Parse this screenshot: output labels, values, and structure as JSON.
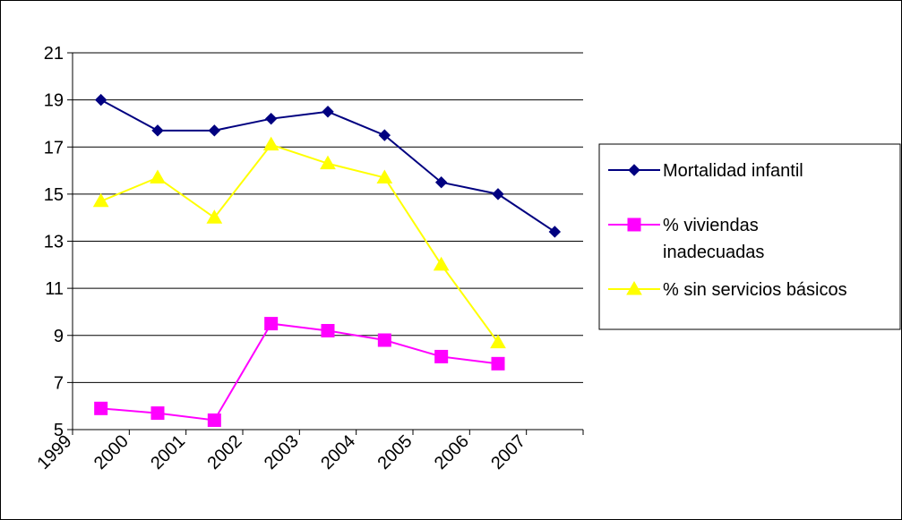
{
  "chart_data": {
    "type": "line",
    "title": "",
    "xlabel": "",
    "ylabel": "",
    "categories": [
      "1999",
      "2000",
      "2001",
      "2002",
      "2003",
      "2004",
      "2005",
      "2006",
      "2007"
    ],
    "ylim": [
      5,
      21
    ],
    "yticks": [
      "5",
      "7",
      "9",
      "11",
      "13",
      "15",
      "17",
      "19",
      "21"
    ],
    "grid": "horizontal",
    "legend_position": "right",
    "series": [
      {
        "name": "Mortalidad infantil",
        "marker": "diamond",
        "color": "#000080",
        "values": [
          19.0,
          17.7,
          17.7,
          18.2,
          18.5,
          17.5,
          15.5,
          15.0,
          13.4
        ]
      },
      {
        "name": "% viviendas inadecuadas",
        "name_lines": [
          "% viviendas",
          "inadecuadas"
        ],
        "marker": "square",
        "color": "#FF00FF",
        "values": [
          5.9,
          5.7,
          5.4,
          9.5,
          9.2,
          8.8,
          8.1,
          7.8,
          null
        ]
      },
      {
        "name": "% sin servicios básicos",
        "marker": "triangle",
        "color": "#FFFF00",
        "values": [
          14.7,
          15.7,
          14.0,
          17.1,
          16.3,
          15.7,
          12.0,
          8.7,
          null
        ]
      }
    ]
  }
}
